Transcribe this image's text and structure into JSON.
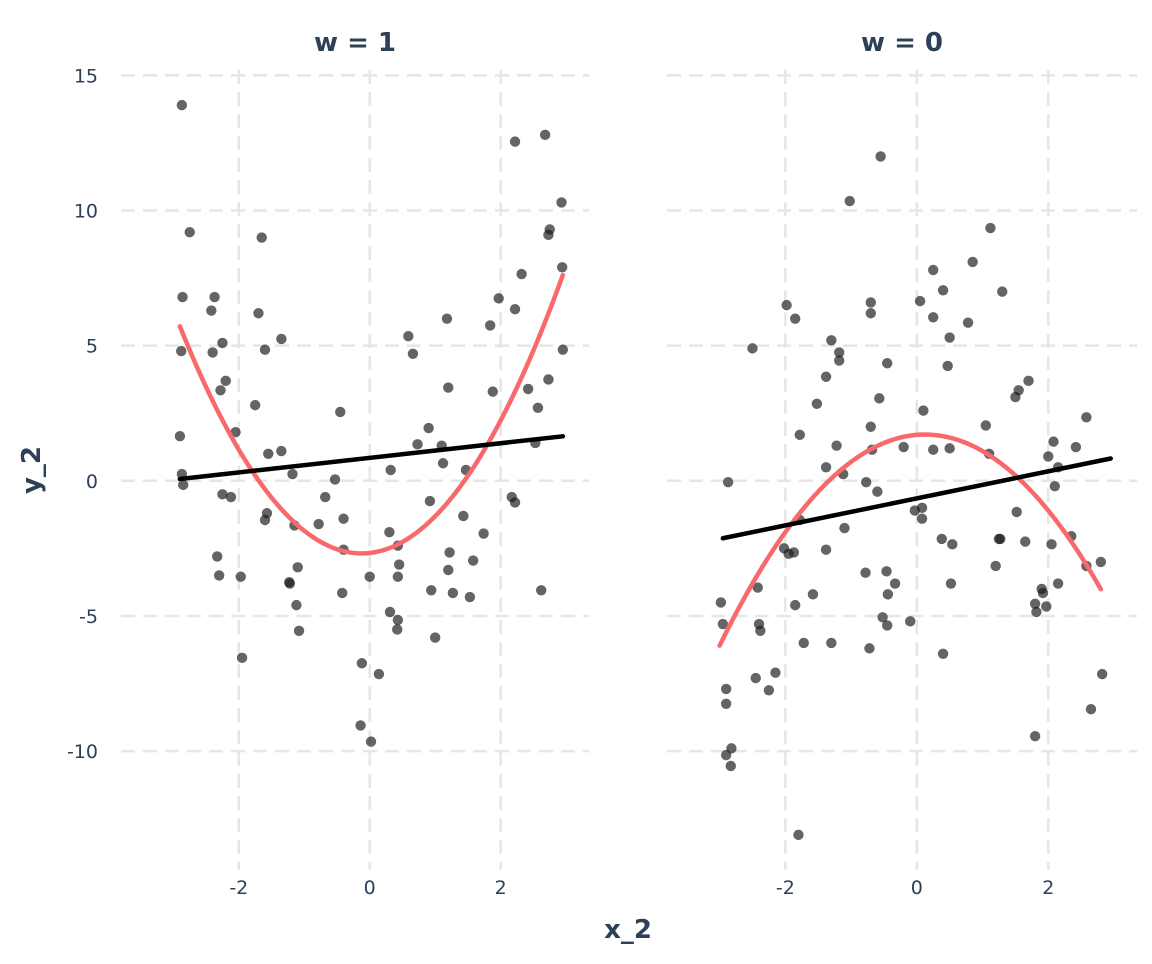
{
  "chart_data": {
    "type": "scatter",
    "xlabel": "x_2",
    "ylabel": "y_2",
    "ylim": [
      -14.4,
      15.2
    ],
    "xlim": [
      -3.8,
      3.35
    ],
    "yticks": [
      -10,
      -5,
      0,
      5,
      10,
      15
    ],
    "xticks": [
      -2,
      0,
      2
    ],
    "grid": true,
    "colors": {
      "points": "#1a1a1a",
      "linear_fit": "#000000",
      "quadratic_fit": "#f8696b",
      "text": "#2e4057",
      "grid": "#e6e6e6"
    },
    "panels": [
      {
        "title": "w = 1",
        "linear_fit": {
          "intercept": 0.85,
          "slope": 0.27,
          "x_range": [
            -2.9,
            2.95
          ]
        },
        "quadratic_fit": {
          "a": 1.09,
          "b": 0.27,
          "c": -2.67,
          "x_range": [
            -2.9,
            2.95
          ]
        },
        "points": [
          [
            -2.87,
            13.9
          ],
          [
            -2.75,
            9.2
          ],
          [
            -2.86,
            6.8
          ],
          [
            -2.88,
            4.8
          ],
          [
            -2.9,
            1.65
          ],
          [
            -2.87,
            0.25
          ],
          [
            -2.85,
            -0.15
          ],
          [
            -2.37,
            6.8
          ],
          [
            -2.42,
            6.3
          ],
          [
            -2.4,
            4.75
          ],
          [
            -2.25,
            5.1
          ],
          [
            -2.28,
            3.35
          ],
          [
            -2.2,
            3.7
          ],
          [
            -2.05,
            1.8
          ],
          [
            -2.33,
            -2.8
          ],
          [
            -2.3,
            -3.5
          ],
          [
            -2.25,
            -0.5
          ],
          [
            -2.12,
            -0.6
          ],
          [
            -1.97,
            -3.55
          ],
          [
            -1.95,
            -6.55
          ],
          [
            -1.65,
            9.0
          ],
          [
            -1.7,
            6.2
          ],
          [
            -1.6,
            4.85
          ],
          [
            -1.75,
            2.8
          ],
          [
            -1.55,
            1.0
          ],
          [
            -1.35,
            1.1
          ],
          [
            -1.35,
            5.25
          ],
          [
            -1.57,
            -1.2
          ],
          [
            -1.6,
            -1.45
          ],
          [
            -1.18,
            0.25
          ],
          [
            -1.15,
            -1.65
          ],
          [
            -1.1,
            -3.2
          ],
          [
            -1.22,
            -3.8
          ],
          [
            -1.23,
            -3.75
          ],
          [
            -1.12,
            -4.6
          ],
          [
            -1.08,
            -5.55
          ],
          [
            -0.78,
            -1.6
          ],
          [
            -0.68,
            -0.6
          ],
          [
            -0.53,
            0.05
          ],
          [
            -0.45,
            2.55
          ],
          [
            -0.4,
            -1.4
          ],
          [
            -0.4,
            -2.55
          ],
          [
            -0.42,
            -4.15
          ],
          [
            0.0,
            -3.55
          ],
          [
            -0.12,
            -6.75
          ],
          [
            -0.14,
            -9.05
          ],
          [
            0.02,
            -9.65
          ],
          [
            0.14,
            -7.15
          ],
          [
            0.3,
            -1.9
          ],
          [
            0.32,
            0.4
          ],
          [
            0.43,
            -2.4
          ],
          [
            0.45,
            -3.1
          ],
          [
            0.43,
            -3.55
          ],
          [
            0.31,
            -4.85
          ],
          [
            0.43,
            -5.15
          ],
          [
            0.42,
            -5.5
          ],
          [
            0.59,
            5.35
          ],
          [
            0.66,
            4.7
          ],
          [
            0.73,
            1.35
          ],
          [
            0.9,
            1.95
          ],
          [
            0.92,
            -0.75
          ],
          [
            0.94,
            -4.05
          ],
          [
            1.0,
            -5.8
          ],
          [
            1.18,
            6.0
          ],
          [
            1.2,
            3.45
          ],
          [
            1.1,
            1.3
          ],
          [
            1.12,
            0.65
          ],
          [
            1.22,
            -2.65
          ],
          [
            1.2,
            -3.3
          ],
          [
            1.27,
            -4.15
          ],
          [
            1.43,
            -1.3
          ],
          [
            1.47,
            0.4
          ],
          [
            1.53,
            -4.3
          ],
          [
            1.58,
            -2.95
          ],
          [
            1.74,
            -1.95
          ],
          [
            1.84,
            5.75
          ],
          [
            1.88,
            3.3
          ],
          [
            1.97,
            6.75
          ],
          [
            2.22,
            12.55
          ],
          [
            2.22,
            6.35
          ],
          [
            2.32,
            7.65
          ],
          [
            2.17,
            -0.6
          ],
          [
            2.22,
            -0.8
          ],
          [
            2.42,
            3.4
          ],
          [
            2.53,
            1.4
          ],
          [
            2.57,
            2.7
          ],
          [
            2.62,
            -4.05
          ],
          [
            2.68,
            12.8
          ],
          [
            2.75,
            9.3
          ],
          [
            2.73,
            9.1
          ],
          [
            2.73,
            3.75
          ],
          [
            2.93,
            10.3
          ],
          [
            2.94,
            7.9
          ],
          [
            2.95,
            4.85
          ]
        ]
      },
      {
        "title": "w = 0",
        "linear_fit": {
          "intercept": -0.65,
          "slope": 0.5,
          "x_range": [
            -2.95,
            2.95
          ]
        },
        "quadratic_fit": {
          "a": -0.8,
          "b": 0.2,
          "c": 1.7,
          "x_range": [
            -3.0,
            2.8
          ]
        },
        "points": [
          [
            -2.98,
            -4.5
          ],
          [
            -2.95,
            -5.3
          ],
          [
            -2.9,
            -7.7
          ],
          [
            -2.9,
            -8.25
          ],
          [
            -2.87,
            -0.05
          ],
          [
            -2.9,
            -10.15
          ],
          [
            -2.82,
            -9.9
          ],
          [
            -2.83,
            -10.55
          ],
          [
            -2.5,
            4.9
          ],
          [
            -2.42,
            -3.95
          ],
          [
            -2.4,
            -5.3
          ],
          [
            -2.38,
            -5.55
          ],
          [
            -2.45,
            -7.3
          ],
          [
            -2.25,
            -7.75
          ],
          [
            -2.15,
            -7.1
          ],
          [
            -1.98,
            6.5
          ],
          [
            -2.02,
            -2.5
          ],
          [
            -1.95,
            -2.7
          ],
          [
            -1.85,
            6.0
          ],
          [
            -1.87,
            -2.65
          ],
          [
            -1.85,
            -4.6
          ],
          [
            -1.8,
            -13.1
          ],
          [
            -1.78,
            1.7
          ],
          [
            -1.78,
            -1.45
          ],
          [
            -1.72,
            -6.0
          ],
          [
            -1.58,
            -4.2
          ],
          [
            -1.52,
            2.85
          ],
          [
            -1.38,
            3.85
          ],
          [
            -1.38,
            0.5
          ],
          [
            -1.38,
            -2.55
          ],
          [
            -1.3,
            5.2
          ],
          [
            -1.3,
            -6.0
          ],
          [
            -1.22,
            1.3
          ],
          [
            -1.18,
            4.75
          ],
          [
            -1.18,
            4.45
          ],
          [
            -1.12,
            0.25
          ],
          [
            -1.1,
            -1.75
          ],
          [
            -1.02,
            10.35
          ],
          [
            -0.77,
            -0.05
          ],
          [
            -0.78,
            -3.4
          ],
          [
            -0.7,
            6.6
          ],
          [
            -0.7,
            6.2
          ],
          [
            -0.7,
            2.0
          ],
          [
            -0.68,
            1.15
          ],
          [
            -0.6,
            -0.4
          ],
          [
            -0.57,
            3.05
          ],
          [
            -0.55,
            12.0
          ],
          [
            -0.52,
            -5.05
          ],
          [
            -0.46,
            -3.35
          ],
          [
            -0.45,
            -5.35
          ],
          [
            -0.44,
            -4.2
          ],
          [
            -0.45,
            4.35
          ],
          [
            -0.33,
            -3.8
          ],
          [
            -0.72,
            -6.2
          ],
          [
            -0.2,
            1.25
          ],
          [
            -0.1,
            -5.2
          ],
          [
            -0.03,
            -1.1
          ],
          [
            0.08,
            -1.0
          ],
          [
            0.05,
            6.65
          ],
          [
            0.1,
            2.6
          ],
          [
            0.08,
            -1.4
          ],
          [
            0.25,
            7.8
          ],
          [
            0.25,
            6.05
          ],
          [
            0.25,
            1.15
          ],
          [
            0.4,
            7.05
          ],
          [
            0.38,
            -2.15
          ],
          [
            0.4,
            -6.4
          ],
          [
            0.47,
            4.25
          ],
          [
            0.5,
            1.2
          ],
          [
            0.52,
            -3.8
          ],
          [
            0.5,
            5.3
          ],
          [
            0.54,
            -2.35
          ],
          [
            0.78,
            5.85
          ],
          [
            0.85,
            8.1
          ],
          [
            1.05,
            2.05
          ],
          [
            1.1,
            1.0
          ],
          [
            1.12,
            9.35
          ],
          [
            1.2,
            -3.15
          ],
          [
            1.25,
            -2.15
          ],
          [
            1.27,
            -2.15
          ],
          [
            1.3,
            7.0
          ],
          [
            1.5,
            3.1
          ],
          [
            1.52,
            -1.15
          ],
          [
            1.55,
            3.35
          ],
          [
            1.65,
            -2.25
          ],
          [
            1.7,
            3.7
          ],
          [
            1.8,
            -4.55
          ],
          [
            1.82,
            -4.85
          ],
          [
            1.8,
            -9.45
          ],
          [
            1.9,
            -4.0
          ],
          [
            1.92,
            -4.15
          ],
          [
            1.97,
            -4.65
          ],
          [
            2.0,
            0.9
          ],
          [
            2.05,
            -2.35
          ],
          [
            2.08,
            1.45
          ],
          [
            2.1,
            -0.2
          ],
          [
            2.15,
            0.5
          ],
          [
            2.15,
            -3.8
          ],
          [
            2.35,
            -2.05
          ],
          [
            2.42,
            1.25
          ],
          [
            2.58,
            2.35
          ],
          [
            2.58,
            -3.15
          ],
          [
            2.65,
            -8.45
          ],
          [
            2.8,
            -3.0
          ],
          [
            2.82,
            -7.15
          ]
        ]
      }
    ]
  }
}
